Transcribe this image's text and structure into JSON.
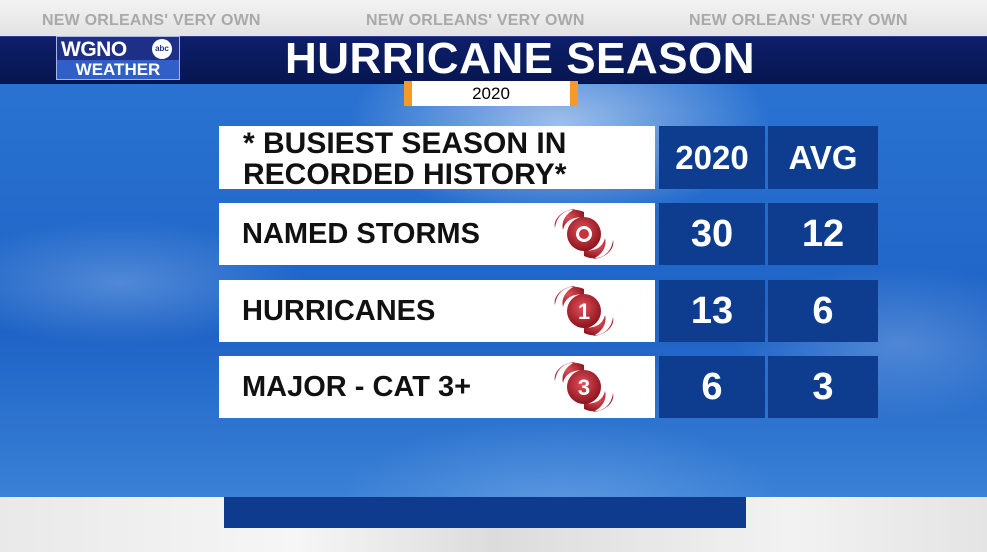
{
  "header": {
    "tags": [
      "NEW ORLEANS' VERY OWN",
      "NEW ORLEANS' VERY OWN",
      "NEW ORLEANS' VERY OWN"
    ],
    "title": "HURRICANE SEASON",
    "year": "2020"
  },
  "logo": {
    "station": "WGNO",
    "network": "abc",
    "subtitle": "WEATHER"
  },
  "table": {
    "header_line1": "* BUSIEST SEASON IN",
    "header_line2": "RECORDED HISTORY*",
    "col1": "2020",
    "col2": "AVG",
    "rows": [
      {
        "label": "NAMED STORMS",
        "icon": "named-storm-icon",
        "icon_text": "",
        "v2020": "30",
        "avg": "12"
      },
      {
        "label": "HURRICANES",
        "icon": "hurricane-cat1-icon",
        "icon_text": "1",
        "v2020": "13",
        "avg": "6"
      },
      {
        "label": "MAJOR - CAT 3+",
        "icon": "hurricane-cat3-icon",
        "icon_text": "3",
        "v2020": "6",
        "avg": "3"
      }
    ]
  },
  "colors": {
    "title_bar": "#0a1a5e",
    "cell_blue": "#0e3c8e",
    "accent_orange": "#f49a28",
    "storm_red": "#b3202a"
  }
}
